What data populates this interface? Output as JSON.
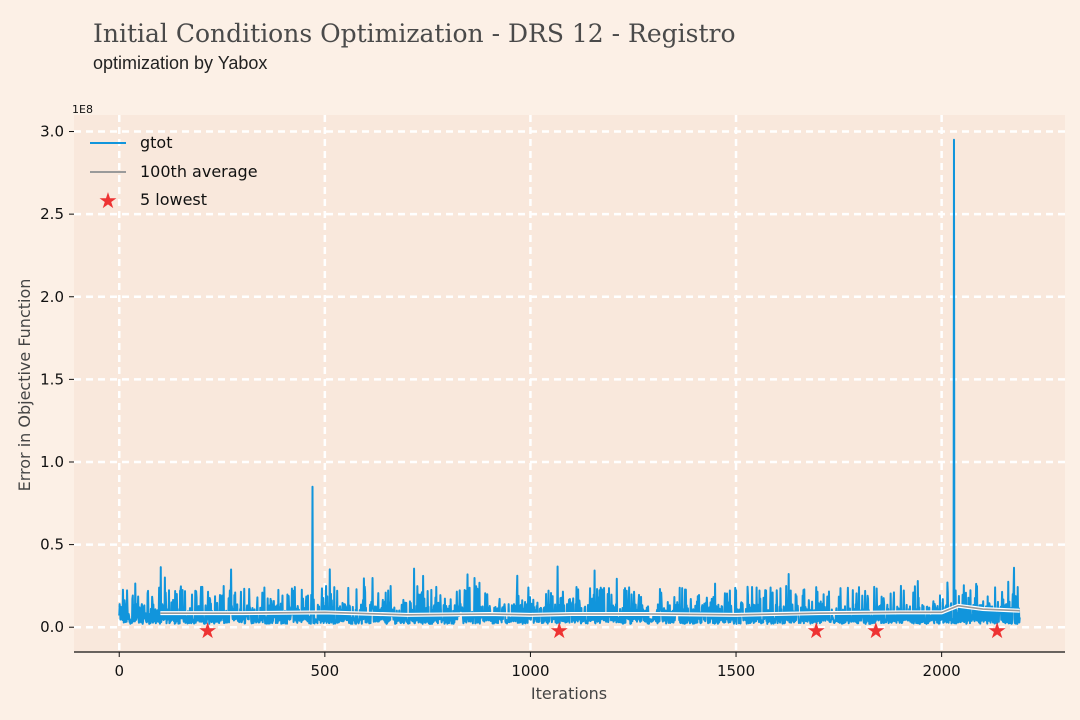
{
  "chart_data": {
    "type": "line",
    "title": "Initial Conditions Optimization - DRS 12 - Registro",
    "subtitle": "optimization by Yabox",
    "xlabel": "Iterations",
    "ylabel": "Error in Objective Function",
    "y_exponent_label": "1E8",
    "xlim": [
      -110,
      2300
    ],
    "ylim": [
      -0.15,
      3.1
    ],
    "y_scale_factor": 100000000,
    "xticks": [
      0,
      500,
      1000,
      1500,
      2000
    ],
    "xtick_labels": [
      "0",
      "500",
      "1000",
      "1500",
      "2000"
    ],
    "yticks": [
      0.0,
      0.5,
      1.0,
      1.5,
      2.0,
      2.5,
      3.0
    ],
    "ytick_labels": [
      "0.0",
      "0.5",
      "1.0",
      "1.5",
      "2.0",
      "2.5",
      "3.0"
    ],
    "grid": true,
    "legend": "top-left",
    "series": [
      {
        "name": "gtot",
        "color": "#1195dc",
        "iterations": [
          0,
          2190
        ],
        "baseline": 0.02,
        "typical_peak": 0.25,
        "spikes": [
          {
            "x": 470,
            "y": 0.85
          },
          {
            "x": 2030,
            "y": 2.95
          }
        ]
      },
      {
        "name": "100th average",
        "color": "#9a9a9a",
        "points": [
          {
            "x": 100,
            "y": 0.085
          },
          {
            "x": 300,
            "y": 0.085
          },
          {
            "x": 500,
            "y": 0.09
          },
          {
            "x": 700,
            "y": 0.075
          },
          {
            "x": 900,
            "y": 0.08
          },
          {
            "x": 1000,
            "y": 0.075
          },
          {
            "x": 1100,
            "y": 0.08
          },
          {
            "x": 1300,
            "y": 0.08
          },
          {
            "x": 1500,
            "y": 0.075
          },
          {
            "x": 1700,
            "y": 0.085
          },
          {
            "x": 1900,
            "y": 0.09
          },
          {
            "x": 2000,
            "y": 0.09
          },
          {
            "x": 2040,
            "y": 0.13
          },
          {
            "x": 2100,
            "y": 0.11
          },
          {
            "x": 2190,
            "y": 0.1
          }
        ]
      },
      {
        "name": "5 lowest",
        "color": "#ee3333",
        "marker": "star",
        "points": [
          {
            "x": 215,
            "y": -0.01
          },
          {
            "x": 1070,
            "y": -0.01
          },
          {
            "x": 1695,
            "y": -0.01
          },
          {
            "x": 1840,
            "y": -0.01
          },
          {
            "x": 2135,
            "y": -0.01
          }
        ]
      }
    ]
  }
}
